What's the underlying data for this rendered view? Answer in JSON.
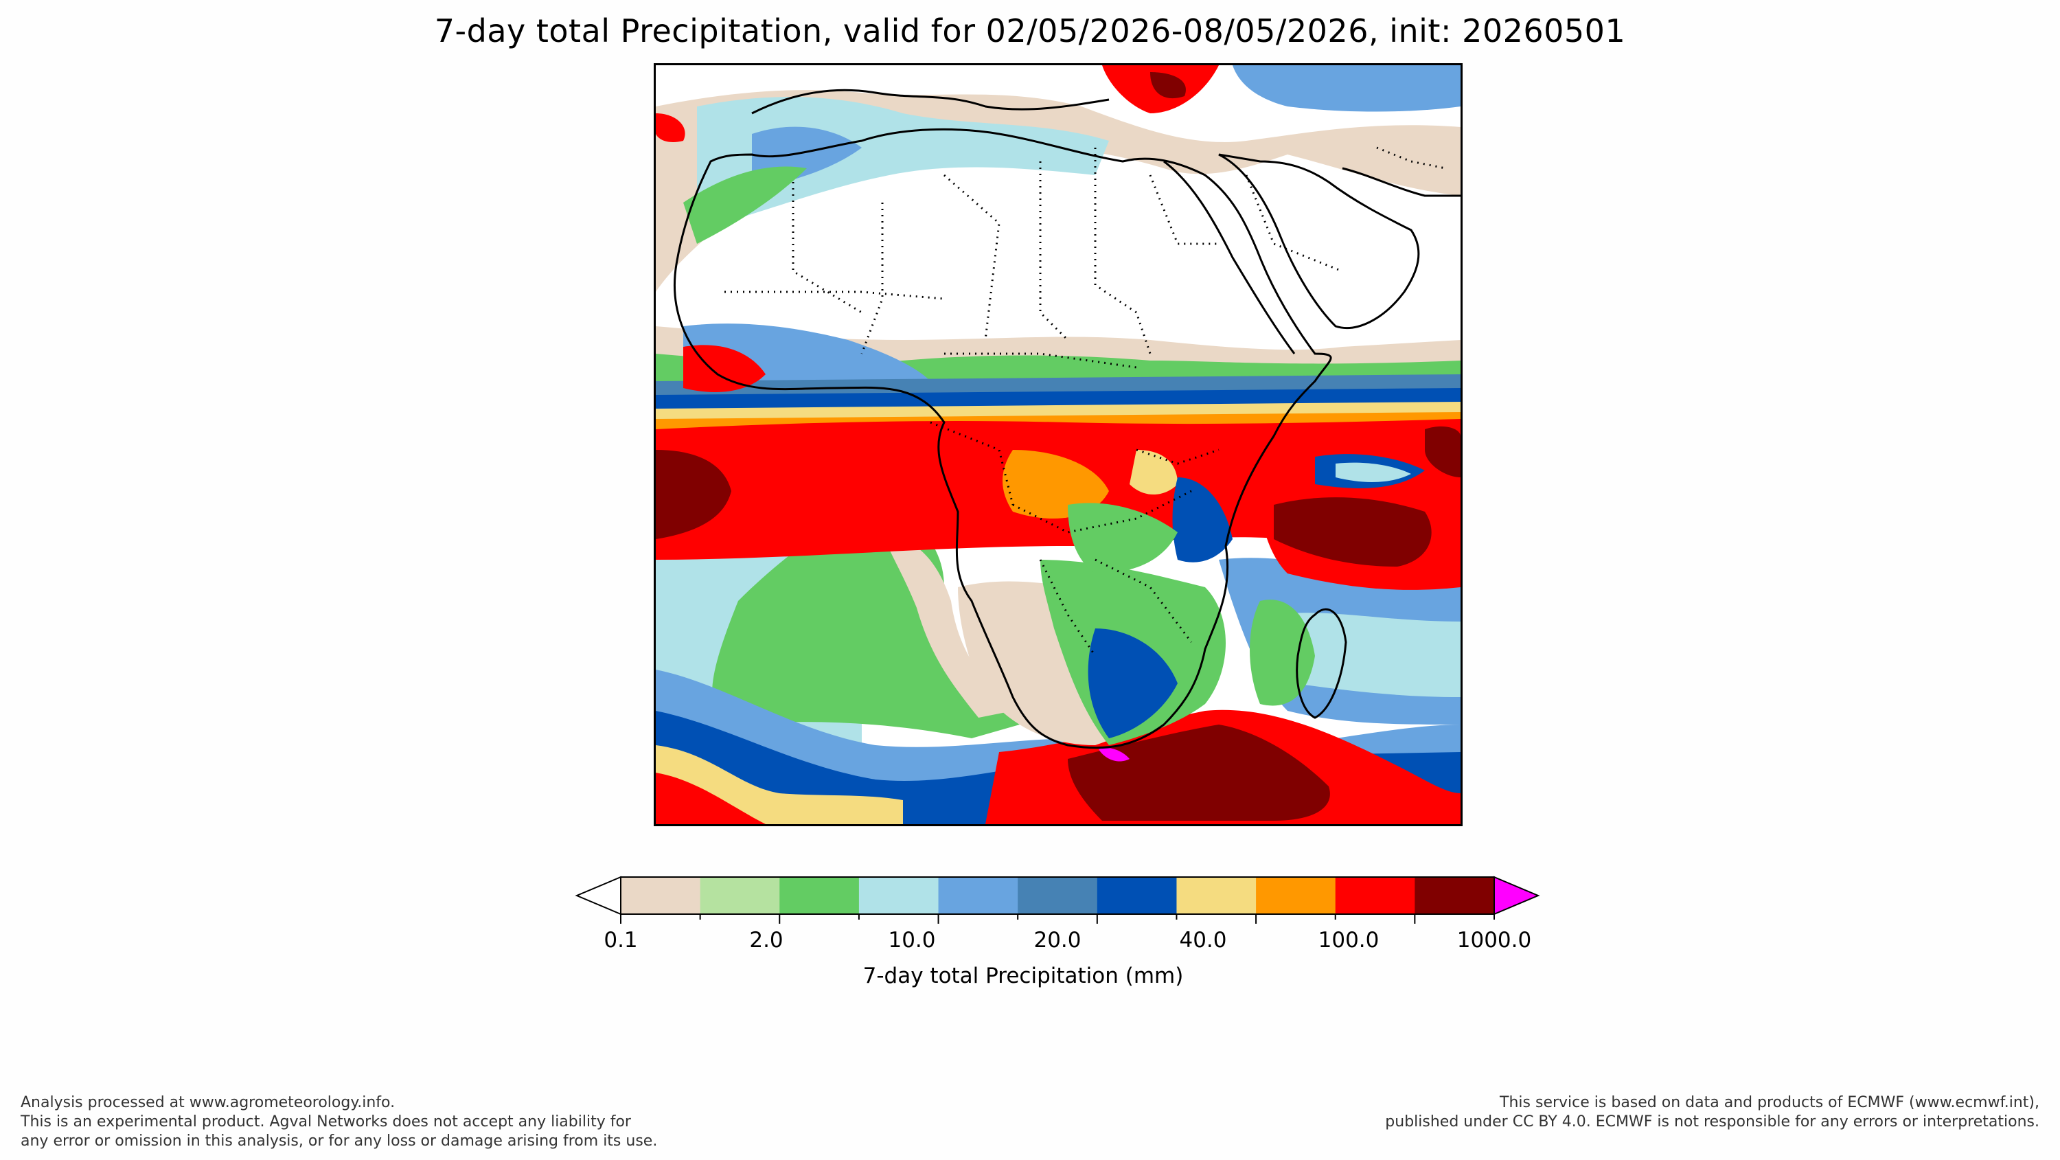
{
  "title": "7-day total Precipitation, valid for 02/05/2026-08/05/2026, init: 20260501",
  "colorbar": {
    "label": "7-day total Precipitation (mm)",
    "tick_labels": [
      "0.1",
      "2.0",
      "10.0",
      "20.0",
      "40.0",
      "100.0",
      "1000.0"
    ],
    "colors": [
      "#ead8c6",
      "#b5e2a0",
      "#63cc63",
      "#b0e2e8",
      "#68a4e0",
      "#4682b4",
      "#0050b4",
      "#f5dc80",
      "#ff9800",
      "#ff0000",
      "#800000",
      "#ff00ff"
    ],
    "extend_low_color": "#ffffff",
    "extend_high_color": "#ff00ff"
  },
  "map": {
    "region": "Africa and Arabian Peninsula",
    "legend_colors": {
      "trace": "#ead8c6",
      "light_green": "#b5e2a0",
      "green": "#63cc63",
      "light_blue": "#b0e2e8",
      "blue": "#68a4e0",
      "steel_blue": "#4682b4",
      "dark_blue": "#0050b4",
      "yellow": "#f5dc80",
      "orange": "#ff9800",
      "red": "#ff0000",
      "dark_red": "#800000",
      "magenta": "#ff00ff"
    }
  },
  "footer": {
    "left_lines": [
      "Analysis processed at www.agrometeorology.info.",
      "This is an experimental product. Agval Networks does not accept any liability for",
      "any error or omission in this analysis, or for any loss or damage arising from its use."
    ],
    "right_lines": [
      "This service is based on data and products of ECMWF (www.ecmwf.int),",
      "published under CC BY 4.0. ECMWF is not responsible for any errors or interpretations."
    ]
  }
}
